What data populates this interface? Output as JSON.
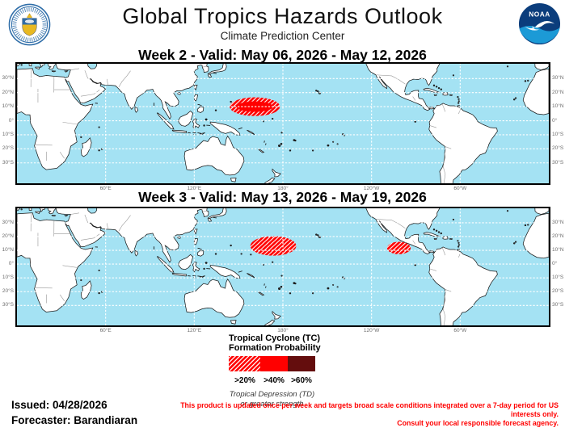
{
  "header": {
    "title": "Global Tropics Hazards Outlook",
    "subtitle": "Climate Prediction Center",
    "left_seal": "US Department of Commerce seal",
    "right_logo": "NOAA logo",
    "right_logo_text": "NOAA"
  },
  "panels": [
    {
      "id": "week2",
      "heading": "Week 2 - Valid: May 06, 2026 - May 12, 2026"
    },
    {
      "id": "week3",
      "heading": "Week 3 - Valid: May 13, 2026 - May 19, 2026"
    }
  ],
  "axes": {
    "lat_ticks": [
      {
        "value": 30,
        "label": "30°N"
      },
      {
        "value": 20,
        "label": "20°N"
      },
      {
        "value": 10,
        "label": "10°N"
      },
      {
        "value": 0,
        "label": "0°"
      },
      {
        "value": -10,
        "label": "10°S"
      },
      {
        "value": -20,
        "label": "20°S"
      },
      {
        "value": -30,
        "label": "30°S"
      }
    ],
    "lon_ticks": [
      {
        "value": 60,
        "label": "60°E"
      },
      {
        "value": 120,
        "label": "120°E"
      },
      {
        "value": 180,
        "label": "180°"
      },
      {
        "value": 240,
        "label": "120°W"
      },
      {
        "value": 300,
        "label": "60°W"
      }
    ]
  },
  "hazard_regions": {
    "week2": [
      {
        "probability": ">20%",
        "style": "hatched",
        "lon_center": 161,
        "lat_center": 10,
        "lon_radius_deg": 17,
        "lat_radius_deg": 6.7
      },
      {
        "probability": ">40%",
        "style": "solid",
        "lon_center": 161,
        "lat_center": 10,
        "lon_radius_deg": 12.3,
        "lat_radius_deg": 3.7
      }
    ],
    "week3": [
      {
        "probability": ">20%",
        "style": "hatched",
        "lon_center": 173.5,
        "lat_center": 13.2,
        "lon_radius_deg": 15.5,
        "lat_radius_deg": 7.1
      },
      {
        "probability": ">20%",
        "style": "hatched",
        "lon_center": 258.5,
        "lat_center": 11.7,
        "lon_radius_deg": 8,
        "lat_radius_deg": 4.5
      }
    ]
  },
  "legend": {
    "title_line1": "Tropical Cyclone (TC)",
    "title_line2": "Formation Probability",
    "classes": [
      {
        "label": ">20%",
        "fill": "hatched",
        "color": "#FF0000"
      },
      {
        "label": ">40%",
        "fill": "solid",
        "color": "#FF0000"
      },
      {
        "label": ">60%",
        "fill": "solid",
        "color": "#640D0D"
      }
    ],
    "note_line1": "Tropical Depression (TD)",
    "note_line2": "or greater strength"
  },
  "footer": {
    "issued": "Issued: 04/28/2026",
    "forecaster": "Forecaster: Barandiaran",
    "disclaimer_line1": "This product is updated once per week and targets broad scale conditions integrated over a 7-day period for US interests only.",
    "disclaimer_line2": "Consult your local responsible forecast agency."
  },
  "colors": {
    "ocean": "#A4E2F3",
    "land": "#FFFFFF",
    "hazard_red": "#FF0000",
    "legend_dark_red": "#640D0D",
    "disclaimer_red": "#FF0000",
    "grid_line": "#FFFFFF",
    "tick_label": "#6E6E6E"
  }
}
